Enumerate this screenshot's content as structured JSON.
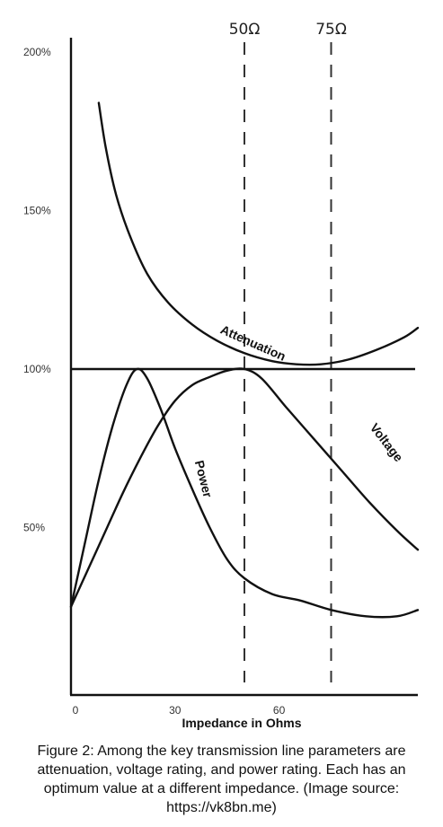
{
  "chart_data": {
    "type": "line",
    "xlabel": "Impedance in Ohms",
    "ylabel": "",
    "xlim": [
      0,
      100
    ],
    "ylim": [
      0,
      200
    ],
    "x_ticks": [
      {
        "value": 0,
        "label": "0"
      },
      {
        "value": 30,
        "label": "30"
      },
      {
        "value": 60,
        "label": "60"
      }
    ],
    "y_ticks": [
      {
        "value": 200,
        "label": "200%"
      },
      {
        "value": 150,
        "label": "150%"
      },
      {
        "value": 100,
        "label": "100%"
      },
      {
        "value": 50,
        "label": "50%"
      }
    ],
    "reference_line": {
      "y": 100
    },
    "markers": [
      {
        "x": 50,
        "label": "50Ω"
      },
      {
        "x": 75,
        "label": "75Ω"
      }
    ],
    "grid": false,
    "legend": "none",
    "series": [
      {
        "name": "Attenuation",
        "label_at": {
          "x": 52,
          "y": 107,
          "angle": 24
        },
        "points": [
          [
            8,
            184
          ],
          [
            10,
            170
          ],
          [
            13,
            155
          ],
          [
            17,
            142
          ],
          [
            22,
            130
          ],
          [
            28,
            121
          ],
          [
            35,
            114
          ],
          [
            42,
            109
          ],
          [
            50,
            105
          ],
          [
            58,
            102.5
          ],
          [
            65,
            101.5
          ],
          [
            72,
            101.5
          ],
          [
            80,
            103
          ],
          [
            88,
            106
          ],
          [
            96,
            110
          ],
          [
            100,
            113
          ]
        ]
      },
      {
        "name": "Voltage",
        "label_at": {
          "x": 90,
          "y": 76,
          "angle": 52
        },
        "points": [
          [
            0,
            25
          ],
          [
            5,
            37
          ],
          [
            10,
            49
          ],
          [
            15,
            61
          ],
          [
            20,
            72
          ],
          [
            25,
            82
          ],
          [
            30,
            90
          ],
          [
            35,
            95
          ],
          [
            40,
            97.5
          ],
          [
            45,
            99.5
          ],
          [
            50,
            100
          ],
          [
            55,
            97
          ],
          [
            62,
            88
          ],
          [
            70,
            78
          ],
          [
            78,
            68
          ],
          [
            86,
            58
          ],
          [
            94,
            49
          ],
          [
            100,
            43
          ]
        ]
      },
      {
        "name": "Power",
        "label_at": {
          "x": 37,
          "y": 65,
          "angle": 76
        },
        "points": [
          [
            0,
            25
          ],
          [
            4,
            45
          ],
          [
            8,
            65
          ],
          [
            12,
            82
          ],
          [
            16,
            95
          ],
          [
            19,
            100
          ],
          [
            22,
            97
          ],
          [
            26,
            87
          ],
          [
            30,
            75
          ],
          [
            35,
            62
          ],
          [
            40,
            50
          ],
          [
            45,
            40
          ],
          [
            50,
            34
          ],
          [
            58,
            29
          ],
          [
            66,
            27
          ],
          [
            75,
            24
          ],
          [
            85,
            22
          ],
          [
            94,
            22
          ],
          [
            100,
            24
          ]
        ]
      }
    ]
  },
  "caption": "Figure 2: Among the key transmission line parameters are attenuation, voltage rating, and power rating. Each has an optimum value at a different impedance. (Image source: https://vk8bn.me)"
}
